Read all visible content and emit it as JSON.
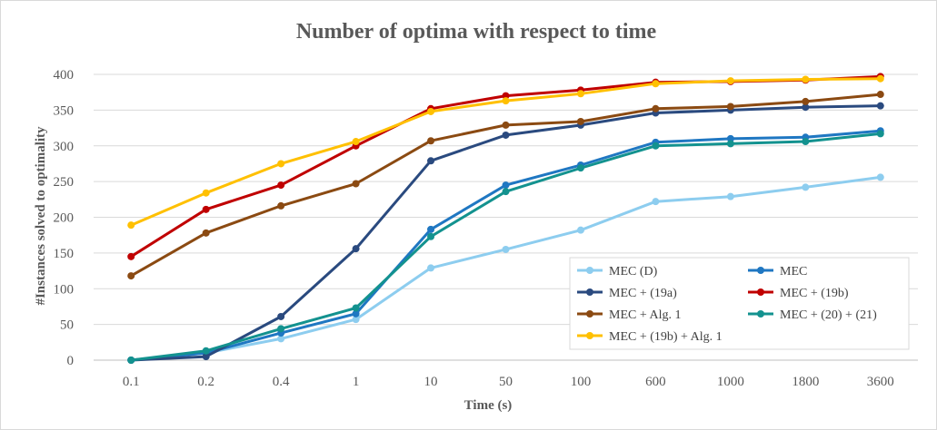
{
  "chart_data": {
    "type": "line",
    "title": "Number of optima with respect to time",
    "xlabel": "Time (s)",
    "ylabel": "#Instances solved to optimality",
    "categories": [
      "0.1",
      "0.2",
      "0.4",
      "1",
      "10",
      "50",
      "100",
      "600",
      "1000",
      "1800",
      "3600"
    ],
    "ylim": [
      0,
      400
    ],
    "yticks": [
      0,
      50,
      100,
      150,
      200,
      250,
      300,
      350,
      400
    ],
    "grid": true,
    "legend_position": "bottom-right",
    "series": [
      {
        "name": "MEC (D)",
        "color": "#8dcdef",
        "values": [
          0,
          10,
          30,
          57,
          129,
          155,
          182,
          222,
          229,
          242,
          256
        ]
      },
      {
        "name": "MEC",
        "color": "#1f77c2",
        "values": [
          0,
          10,
          38,
          65,
          183,
          245,
          273,
          305,
          310,
          312,
          321
        ]
      },
      {
        "name": "MEC + (19a)",
        "color": "#2a4a7f",
        "values": [
          0,
          5,
          61,
          156,
          279,
          315,
          329,
          346,
          350,
          354,
          356
        ]
      },
      {
        "name": "MEC + (19b)",
        "color": "#c00000",
        "values": [
          145,
          211,
          245,
          300,
          352,
          370,
          378,
          389,
          390,
          392,
          397
        ]
      },
      {
        "name": "MEC + Alg. 1",
        "color": "#8b4a12",
        "values": [
          118,
          178,
          216,
          247,
          307,
          329,
          334,
          352,
          355,
          362,
          372
        ]
      },
      {
        "name": "MEC + (20) + (21)",
        "color": "#13928f",
        "values": [
          0,
          13,
          44,
          73,
          173,
          236,
          269,
          300,
          303,
          306,
          317
        ]
      },
      {
        "name": "MEC + (19b) + Alg. 1",
        "color": "#ffc000",
        "values": [
          189,
          234,
          275,
          306,
          348,
          363,
          373,
          387,
          391,
          393,
          394
        ]
      }
    ]
  }
}
